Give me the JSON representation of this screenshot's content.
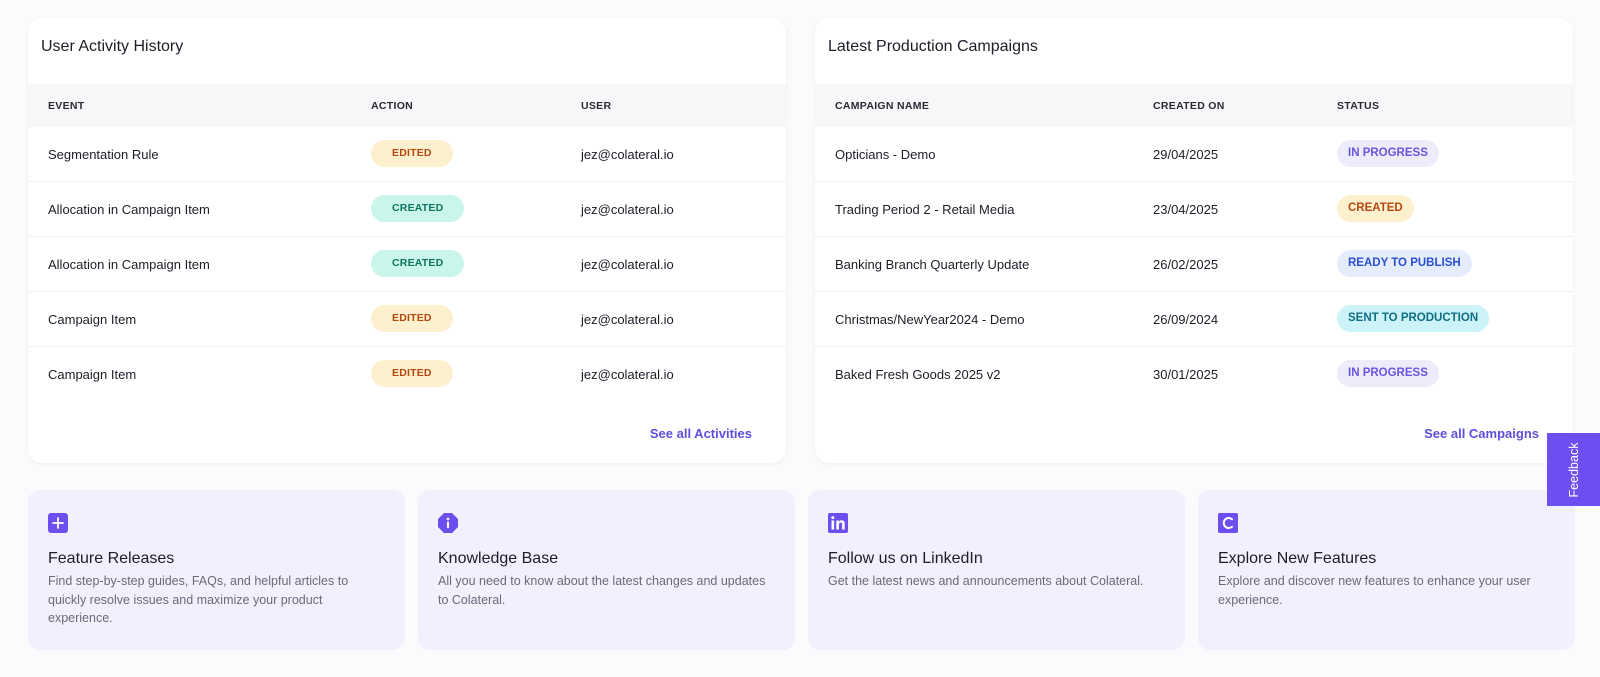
{
  "activity": {
    "title": "User Activity History",
    "columns": [
      "EVENT",
      "ACTION",
      "USER"
    ],
    "rows": [
      {
        "event": "Segmentation Rule",
        "action": "EDITED",
        "user": "jez@colateral.io"
      },
      {
        "event": "Allocation in Campaign Item",
        "action": "CREATED",
        "user": "jez@colateral.io"
      },
      {
        "event": "Allocation in Campaign Item",
        "action": "CREATED",
        "user": "jez@colateral.io"
      },
      {
        "event": "Campaign Item",
        "action": "EDITED",
        "user": "jez@colateral.io"
      },
      {
        "event": "Campaign Item",
        "action": "EDITED",
        "user": "jez@colateral.io"
      }
    ],
    "see_all": "See all Activities"
  },
  "campaigns": {
    "title": "Latest Production Campaigns",
    "columns": [
      "CAMPAIGN NAME",
      "CREATED ON",
      "STATUS"
    ],
    "rows": [
      {
        "name": "Opticians - Demo",
        "created_on": "29/04/2025",
        "status": "IN PROGRESS"
      },
      {
        "name": "Trading Period 2 - Retail Media",
        "created_on": "23/04/2025",
        "status": "CREATED"
      },
      {
        "name": "Banking Branch Quarterly Update",
        "created_on": "26/02/2025",
        "status": "READY TO PUBLISH"
      },
      {
        "name": "Christmas/NewYear2024 - Demo",
        "created_on": "26/09/2024",
        "status": "SENT TO PRODUCTION"
      },
      {
        "name": "Baked Fresh Goods 2025 v2",
        "created_on": "30/01/2025",
        "status": "IN PROGRESS"
      }
    ],
    "see_all": "See all Campaigns"
  },
  "features": [
    {
      "icon": "plus-square-icon",
      "title": "Feature Releases",
      "description": "Find step-by-step guides, FAQs, and helpful articles to quickly resolve issues and maximize your product experience."
    },
    {
      "icon": "info-octagon-icon",
      "title": "Knowledge Base",
      "description": "All you need to know about the latest changes and updates to Colateral."
    },
    {
      "icon": "linkedin-icon",
      "title": "Follow us on LinkedIn",
      "description": "Get the latest news and announcements about Colateral."
    },
    {
      "icon": "colateral-logo-icon",
      "title": "Explore New Features",
      "description": "Explore and discover new features to enhance your user experience."
    }
  ],
  "feedback": {
    "label": "Feedback"
  },
  "colors": {
    "accent": "#6d4ff1",
    "link": "#5b50dd",
    "feature_bg": "#f1f0fc"
  }
}
